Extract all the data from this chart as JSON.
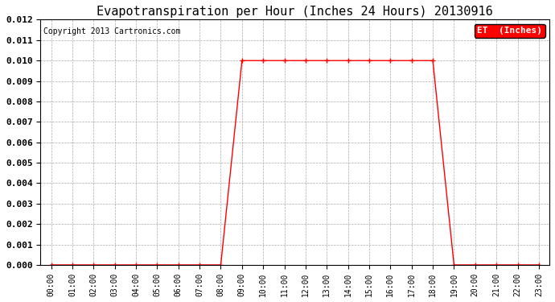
{
  "title": "Evapotranspiration per Hour (Inches 24 Hours) 20130916",
  "copyright_text": "Copyright 2013 Cartronics.com",
  "legend_label": "ET  (Inches)",
  "legend_bg": "#ff0000",
  "legend_text_color": "#ffffff",
  "line_color": "#ff0000",
  "marker": "+",
  "marker_size": 4,
  "marker_lw": 1.0,
  "hours": [
    "00:00",
    "01:00",
    "02:00",
    "03:00",
    "04:00",
    "05:00",
    "06:00",
    "07:00",
    "08:00",
    "09:00",
    "10:00",
    "11:00",
    "12:00",
    "13:00",
    "14:00",
    "15:00",
    "16:00",
    "17:00",
    "18:00",
    "19:00",
    "20:00",
    "21:00",
    "22:00",
    "23:00"
  ],
  "values": [
    0.0,
    0.0,
    0.0,
    0.0,
    0.0,
    0.0,
    0.0,
    0.0,
    0.0,
    0.01,
    0.01,
    0.01,
    0.01,
    0.01,
    0.01,
    0.01,
    0.01,
    0.01,
    0.01,
    0.0,
    0.0,
    0.0,
    0.0,
    0.0
  ],
  "ylim": [
    0.0,
    0.012
  ],
  "yticks": [
    0.0,
    0.001,
    0.002,
    0.003,
    0.004,
    0.005,
    0.006,
    0.007,
    0.008,
    0.009,
    0.01,
    0.011,
    0.012
  ],
  "grid_color": "#aaaaaa",
  "grid_style": "--",
  "bg_color": "#ffffff",
  "title_fontsize": 11,
  "copyright_fontsize": 7,
  "tick_fontsize": 7,
  "ytick_fontsize": 8,
  "legend_fontsize": 8,
  "line_width": 1.0
}
